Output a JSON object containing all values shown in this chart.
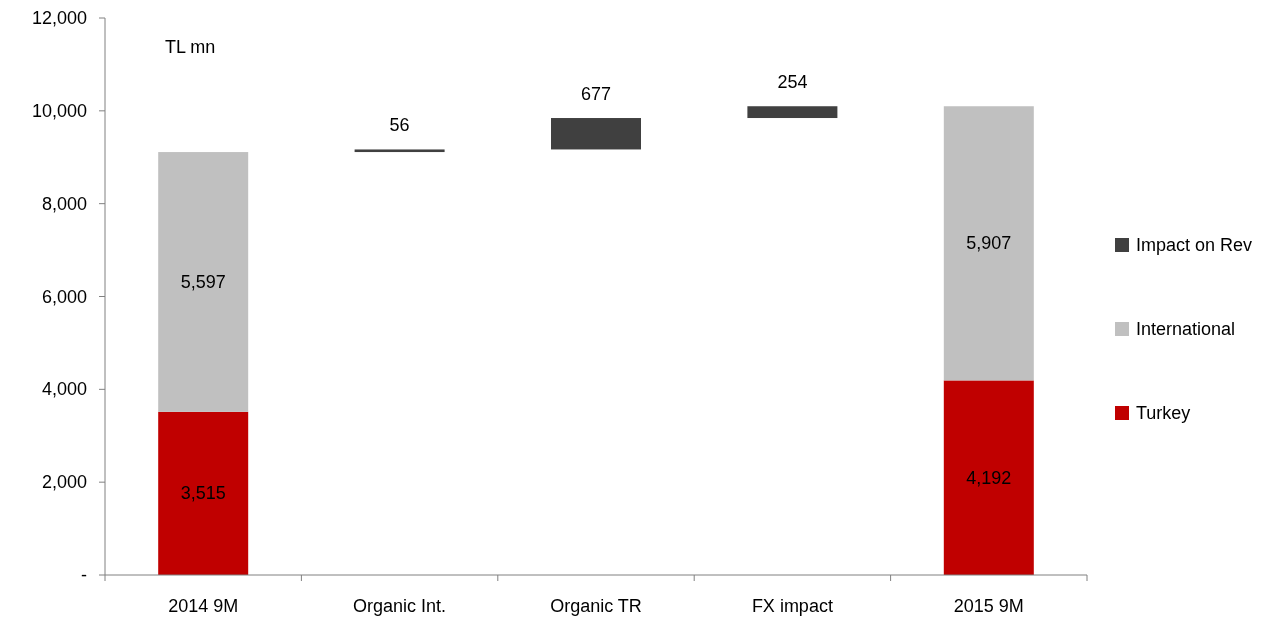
{
  "chart_data": {
    "type": "bar",
    "stacked": true,
    "categories": [
      "2014 9M",
      "Organic Int.",
      "Organic TR",
      "FX impact",
      "2015 9M"
    ],
    "series": [
      {
        "name": "Turkey",
        "color": "#c00000",
        "values": [
          3515,
          null,
          null,
          null,
          4192
        ],
        "value_labels": [
          "3,515",
          null,
          null,
          null,
          "4,192"
        ]
      },
      {
        "name": "International",
        "color": "#c0c0c0",
        "values": [
          5597,
          null,
          null,
          null,
          5907
        ],
        "value_labels": [
          "5,597",
          null,
          null,
          null,
          "5,907"
        ]
      },
      {
        "name": "Impact on Rev",
        "color": "#404040",
        "values": [
          null,
          56,
          677,
          254,
          null
        ],
        "base": [
          null,
          9112,
          9168,
          9845,
          null
        ],
        "value_labels": [
          null,
          "56",
          "677",
          "254",
          null
        ]
      }
    ],
    "ylim": [
      0,
      12000
    ],
    "yticks": [
      {
        "value": 0,
        "label": "-"
      },
      {
        "value": 2000,
        "label": "2,000"
      },
      {
        "value": 4000,
        "label": "4,000"
      },
      {
        "value": 6000,
        "label": "6,000"
      },
      {
        "value": 8000,
        "label": "8,000"
      },
      {
        "value": 10000,
        "label": "10,000"
      },
      {
        "value": 12000,
        "label": "12,000"
      }
    ],
    "annotations": [
      "TL mn"
    ],
    "legend": "right",
    "grid": false
  }
}
